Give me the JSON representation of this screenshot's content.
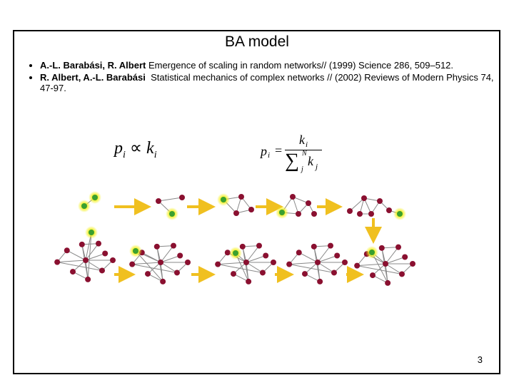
{
  "title": "BA model",
  "references": [
    {
      "authors": "A.-L. Barabási, R. Albert",
      "text": " Emergence of scaling in random networks// (1999) Science 286, 509–512."
    },
    {
      "authors": "R. Albert, A.-L. Barabási",
      "text": "  Statistical mechanics of complex networks // (2002) Reviews of Modern Physics 74, 47-97."
    }
  ],
  "formula_1": {
    "lhs": "p",
    "lhs_sub": "i",
    "relation": "∝",
    "rhs": "k",
    "rhs_sub": "i"
  },
  "formula_2": {
    "lhs": "p",
    "lhs_sub": "i",
    "relation": "=",
    "numerator": "k",
    "numerator_sub": "i",
    "sum": "∑",
    "sum_top": "N",
    "sum_bottom": "j",
    "denominator": "k",
    "denominator_sub": "j"
  },
  "page_number": "3"
}
